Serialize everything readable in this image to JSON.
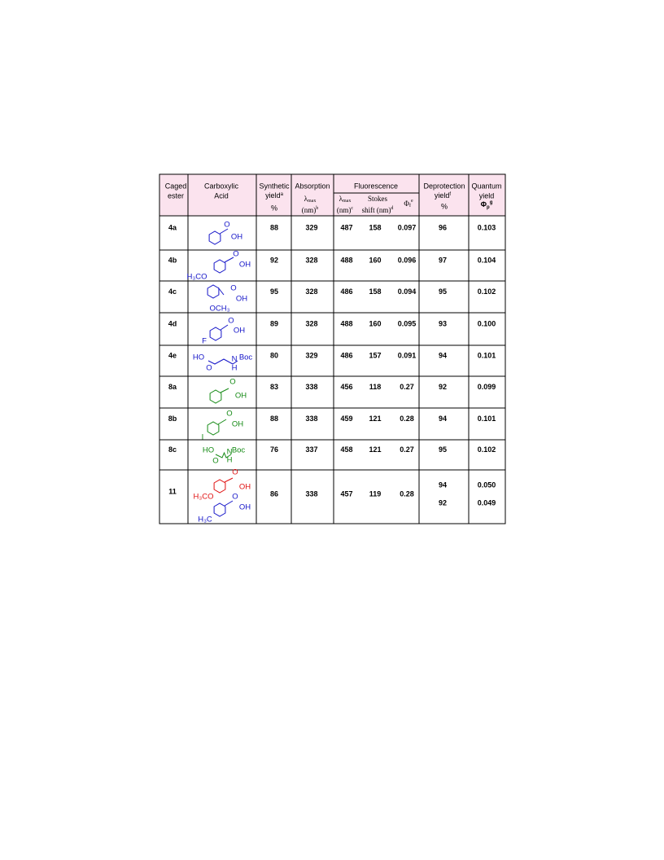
{
  "header": {
    "caged": [
      "Caged",
      "ester"
    ],
    "acid": [
      "Carboxylic",
      "Acid"
    ],
    "synthetic": [
      "Synthetic",
      "yield",
      "a",
      "%"
    ],
    "absorption": {
      "title": "Absorption",
      "lambda": "λ",
      "max": "max",
      "nm": "(nm)",
      "sup": "b"
    },
    "fluorescence": {
      "title": "Fluorescence",
      "lambda": "λ",
      "max": "max",
      "nm": "(nm)",
      "sup_c": "c",
      "stokes": "Stokes",
      "shift": "shift (nm)",
      "sup_d": "d",
      "phi": "Φ",
      "f": "f",
      "sup_e": "e"
    },
    "deprotection": [
      "Deprotection",
      "yield",
      "f",
      "%"
    ],
    "quantum": [
      "Quantum",
      "yield",
      "Φ",
      "p",
      "g"
    ]
  },
  "rows": [
    {
      "ester": "4a",
      "color": "#1515c8",
      "acid_labels": [
        "O",
        "OH"
      ],
      "synthetic": "88",
      "absorption": "329",
      "emission": "487",
      "stokes": "158",
      "phi_f": "0.097",
      "deprotection": [
        "96"
      ],
      "quantum": [
        "0.103"
      ]
    },
    {
      "ester": "4b",
      "color": "#1515c8",
      "acid_labels": [
        "O",
        "OH",
        "H₃CO"
      ],
      "synthetic": "92",
      "absorption": "328",
      "emission": "488",
      "stokes": "160",
      "phi_f": "0.096",
      "deprotection": [
        "97"
      ],
      "quantum": [
        "0.104"
      ]
    },
    {
      "ester": "4c",
      "color": "#1515c8",
      "acid_labels": [
        "O",
        "OH",
        "OCH₃"
      ],
      "synthetic": "95",
      "absorption": "328",
      "emission": "486",
      "stokes": "158",
      "phi_f": "0.094",
      "deprotection": [
        "95"
      ],
      "quantum": [
        "0.102"
      ]
    },
    {
      "ester": "4d",
      "color": "#1515c8",
      "acid_labels": [
        "O",
        "OH",
        "F"
      ],
      "synthetic": "89",
      "absorption": "328",
      "emission": "488",
      "stokes": "160",
      "phi_f": "0.095",
      "deprotection": [
        "93"
      ],
      "quantum": [
        "0.100"
      ]
    },
    {
      "ester": "4e",
      "color": "#1515c8",
      "acid_labels": [
        "HO",
        "O",
        "N",
        "H",
        "Boc"
      ],
      "synthetic": "80",
      "absorption": "329",
      "emission": "486",
      "stokes": "157",
      "phi_f": "0.091",
      "deprotection": [
        "94"
      ],
      "quantum": [
        "0.101"
      ]
    },
    {
      "ester": "8a",
      "color": "#158a15",
      "acid_labels": [
        "O",
        "OH"
      ],
      "synthetic": "83",
      "absorption": "338",
      "emission": "456",
      "stokes": "118",
      "phi_f": "0.27",
      "deprotection": [
        "92"
      ],
      "quantum": [
        "0.099"
      ]
    },
    {
      "ester": "8b",
      "color": "#158a15",
      "acid_labels": [
        "O",
        "OH",
        "I"
      ],
      "synthetic": "88",
      "absorption": "338",
      "emission": "459",
      "stokes": "121",
      "phi_f": "0.28",
      "deprotection": [
        "94"
      ],
      "quantum": [
        "0.101"
      ]
    },
    {
      "ester": "8c",
      "color": "#158a15",
      "acid_labels": [
        "HO",
        "O",
        "N",
        "H",
        "Boc"
      ],
      "synthetic": "76",
      "absorption": "337",
      "emission": "458",
      "stokes": "121",
      "phi_f": "0.27",
      "deprotection": [
        "95"
      ],
      "quantum": [
        "0.102"
      ]
    },
    {
      "ester": "11",
      "color": "#e01010",
      "color2": "#1515c8",
      "acid_labels": [
        "O",
        "OH",
        "H₃CO",
        "O",
        "OH",
        "H₃C"
      ],
      "synthetic": "86",
      "absorption": "338",
      "emission": "457",
      "stokes": "119",
      "phi_f": "0.28",
      "deprotection": [
        "94",
        "92"
      ],
      "quantum": [
        "0.050",
        "0.049"
      ]
    }
  ]
}
